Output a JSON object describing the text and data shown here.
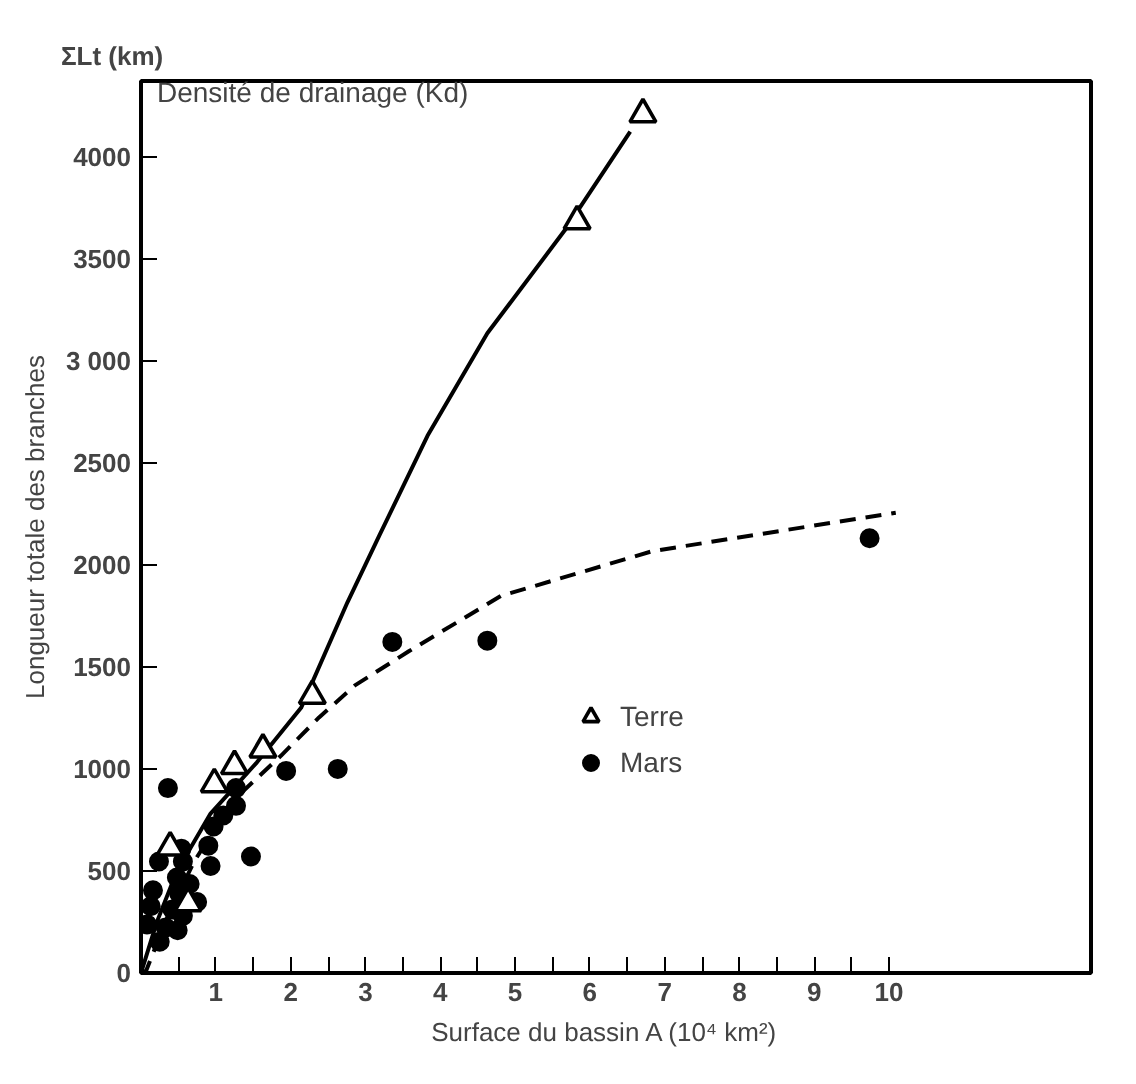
{
  "chart_data": {
    "type": "scatter",
    "title": "Densité de drainage (Kd)",
    "xlabel": "Surface du bassin    A (10⁴ km²)",
    "ylabel": "Longueur totale des branches",
    "annotations": [
      "ΣLt (km)"
    ],
    "xlim": [
      0,
      12.7
    ],
    "ylim": [
      0,
      4370
    ],
    "xticks": [
      {
        "value": 0.5,
        "label": null
      },
      1,
      {
        "value": 1.5,
        "label": null
      },
      2,
      {
        "value": 2.5,
        "label": null
      },
      3,
      {
        "value": 3.5,
        "label": null
      },
      4,
      {
        "value": 4.5,
        "label": null
      },
      5,
      {
        "value": 5.5,
        "label": null
      },
      6,
      {
        "value": 6.5,
        "label": null
      },
      7,
      {
        "value": 7.5,
        "label": null
      },
      8,
      {
        "value": 8.5,
        "label": null
      },
      9,
      {
        "value": 9.5,
        "label": null
      },
      10
    ],
    "yticks": [
      0,
      500,
      1000,
      1500,
      2000,
      2500,
      {
        "value": 3000,
        "label": "3 000"
      },
      3500,
      4000
    ],
    "grid": false,
    "legend": "right",
    "series": [
      {
        "name": "Terre",
        "marker": "triangle",
        "color": "#000000",
        "x": [
          0.39,
          0.63,
          0.98,
          1.25,
          1.63,
          2.29,
          5.83,
          6.71
        ],
        "values": [
          615,
          342,
          925,
          1014,
          1095,
          1358,
          3683,
          4207
        ]
      },
      {
        "name": "Mars",
        "marker": "circle",
        "color": "#000000",
        "x": [
          0.36,
          0.24,
          0.16,
          0.13,
          0.08,
          0.25,
          0.33,
          0.42,
          0.48,
          0.51,
          0.49,
          0.54,
          0.56,
          0.56,
          0.65,
          0.75,
          0.9,
          0.93,
          0.97,
          1.1,
          1.27,
          1.27,
          1.47,
          1.94,
          2.63,
          3.36,
          4.63,
          9.74
        ],
        "values": [
          906,
          546,
          405,
          327,
          238,
          153,
          223,
          311,
          468,
          389,
          210,
          609,
          546,
          280,
          436,
          348,
          624,
          524,
          718,
          772,
          819,
          906,
          571,
          990,
          1000,
          1622,
          1628,
          2130
        ]
      },
      {
        "type": "line",
        "line_style": "solid",
        "color": "#000000",
        "x": [
          0,
          0.21,
          0.48,
          0.93,
          1.55,
          2.14,
          2.76,
          3.19,
          3.83,
          4.63,
          5.66,
          6.54
        ],
        "values": [
          0,
          248,
          499,
          781,
          1032,
          1299,
          1816,
          2146,
          2632,
          3134,
          3636,
          4122
        ]
      },
      {
        "type": "line",
        "line_style": "dashed",
        "color": "#000000",
        "x": [
          0,
          0.07,
          0.34,
          0.71,
          1.23,
          1.87,
          2.38,
          2.86,
          3.58,
          4.81,
          6.84,
          10.09
        ],
        "values": [
          0,
          12,
          263,
          546,
          845,
          1064,
          1252,
          1409,
          1576,
          1847,
          2067,
          2255
        ]
      }
    ]
  }
}
